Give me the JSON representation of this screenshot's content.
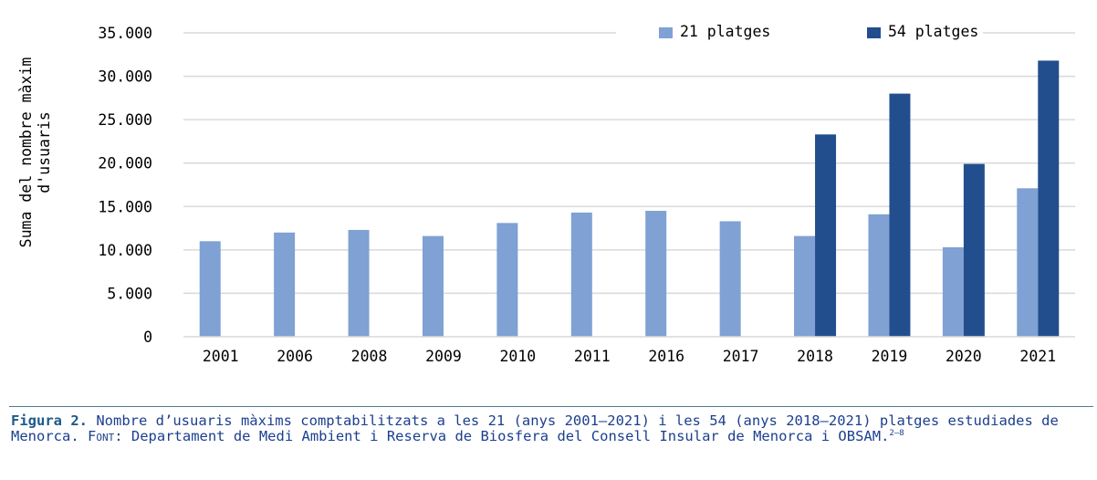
{
  "chart_data": {
    "type": "bar",
    "categories": [
      "2001",
      "2006",
      "2008",
      "2009",
      "2010",
      "2011",
      "2016",
      "2017",
      "2018",
      "2019",
      "2020",
      "2021"
    ],
    "series": [
      {
        "name": "21 platges",
        "color": "#7fa1d3",
        "values": [
          11000,
          12000,
          12300,
          11600,
          13100,
          14300,
          14500,
          13300,
          11600,
          14100,
          10300,
          17100
        ]
      },
      {
        "name": "54 platges",
        "color": "#234e8e",
        "values": [
          null,
          null,
          null,
          null,
          null,
          null,
          null,
          null,
          23300,
          28000,
          19900,
          31800
        ]
      }
    ],
    "ylabel_lines": [
      "Suma del nombre màxim",
      "d'usuaris"
    ],
    "xlabel": "",
    "ylim": [
      0,
      35000
    ],
    "yticks": [
      0,
      5000,
      10000,
      15000,
      20000,
      25000,
      30000,
      35000
    ],
    "ytick_labels": [
      "0",
      "5.000",
      "10.000",
      "15.000",
      "20.000",
      "25.000",
      "30.000",
      "35.000"
    ],
    "grid": true,
    "legend_position": "top-right",
    "gridline_color": "#d9d9d9"
  },
  "caption": {
    "label": "Figura 2.",
    "text_1": " Nombre d’usuaris màxims comptabilitzats a les 21 (anys 2001–2021) i les 54 (anys 2018–2021) platges estudiades de Menorca. ",
    "font_word": "Font",
    "text_2": ": Departament de Medi Ambient i Reserva de Biosfera del Consell Insular de Menorca i OBSAM.",
    "refs": "2–8"
  }
}
